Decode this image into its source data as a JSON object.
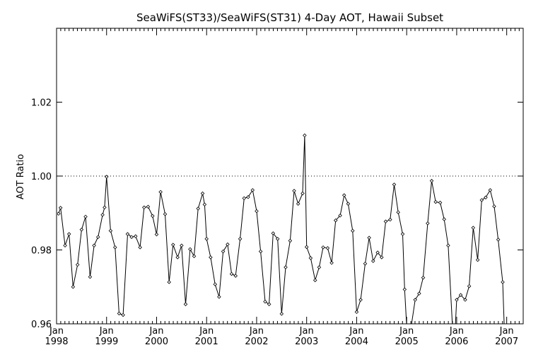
{
  "chart_data": {
    "type": "line",
    "title": "SeaWiFS(ST33)/SeaWiFS(ST31) 4-Day AOT, Hawaii Subset",
    "xlabel": "",
    "ylabel": "AOT Ratio",
    "xlim": [
      1998.0,
      2007.33
    ],
    "ylim": [
      0.96,
      1.04
    ],
    "yticks": [
      0.96,
      0.98,
      1.0,
      1.02
    ],
    "ytick_labels": [
      "0.96",
      "0.98",
      "1.00",
      "1.02"
    ],
    "xticks": [
      1998,
      1999,
      2000,
      2001,
      2002,
      2003,
      2004,
      2005,
      2006,
      2007
    ],
    "xtick_month_label": "Jan",
    "xtick_year_labels": [
      "1998",
      "1999",
      "2000",
      "2001",
      "2002",
      "2003",
      "2004",
      "2005",
      "2006",
      "2007"
    ],
    "reference_line": {
      "y": 1.0,
      "style": "dotted"
    },
    "grid": false,
    "legend": "none",
    "marker": "diamond",
    "line_color": "#000000",
    "series": [
      {
        "x": [
          1998.0,
          1998.04,
          1998.08,
          1998.17,
          1998.25,
          1998.33,
          1998.42,
          1998.5,
          1998.58,
          1998.67,
          1998.75,
          1998.83,
          1998.92,
          1998.96,
          1999.0,
          1999.08,
          1999.17,
          1999.25,
          1999.33,
          1999.42,
          1999.5,
          1999.58,
          1999.67,
          1999.75,
          1999.83,
          1999.92,
          2000.0,
          2000.08,
          2000.17,
          2000.25,
          2000.33,
          2000.42,
          2000.5,
          2000.58,
          2000.67,
          2000.75,
          2000.83,
          2000.92,
          2000.96,
          2001.0,
          2001.08,
          2001.17,
          2001.25,
          2001.33,
          2001.42,
          2001.5,
          2001.58,
          2001.67,
          2001.75,
          2001.83,
          2001.92,
          2002.0,
          2002.08,
          2002.17,
          2002.25,
          2002.33,
          2002.42,
          2002.5,
          2002.58,
          2002.67,
          2002.75,
          2002.83,
          2002.92,
          2002.96,
          2003.0,
          2003.08,
          2003.17,
          2003.25,
          2003.33,
          2003.42,
          2003.5,
          2003.58,
          2003.67,
          2003.75,
          2003.83,
          2003.92,
          2004.0,
          2004.08,
          2004.17,
          2004.25,
          2004.33,
          2004.42,
          2004.5,
          2004.58,
          2004.67,
          2004.75,
          2004.83,
          2004.92,
          2004.96,
          2005.0,
          2005.08,
          2005.17,
          2005.25,
          2005.33,
          2005.42,
          2005.5,
          2005.58,
          2005.67,
          2005.75,
          2005.83,
          2005.92,
          2005.96,
          2006.0,
          2006.08,
          2006.17,
          2006.25,
          2006.33,
          2006.42,
          2006.5,
          2006.58,
          2006.67,
          2006.75,
          2006.83,
          2006.92,
          2006.96,
          2007.0,
          2007.08,
          2007.17,
          2007.25,
          2007.3
        ],
        "y": [
          0.9898,
          0.9898,
          0.9914,
          0.9812,
          0.9843,
          0.97,
          0.976,
          0.9855,
          0.989,
          0.9727,
          0.9812,
          0.9835,
          0.9895,
          0.9915,
          0.9998,
          0.9852,
          0.9807,
          0.9628,
          0.9624,
          0.9843,
          0.9835,
          0.9837,
          0.9807,
          0.9915,
          0.9917,
          0.9892,
          0.9842,
          0.9957,
          0.9897,
          0.9713,
          0.9814,
          0.978,
          0.9812,
          0.9653,
          0.9802,
          0.9783,
          0.9912,
          0.9953,
          0.9923,
          0.983,
          0.978,
          0.9707,
          0.9673,
          0.9796,
          0.9815,
          0.9735,
          0.973,
          0.983,
          0.994,
          0.9943,
          0.9962,
          0.9905,
          0.9796,
          0.966,
          0.9653,
          0.9845,
          0.983,
          0.9627,
          0.9753,
          0.9825,
          0.996,
          0.9925,
          0.9953,
          1.011,
          0.9808,
          0.9778,
          0.9718,
          0.9753,
          0.9807,
          0.9805,
          0.9765,
          0.988,
          0.9893,
          0.9948,
          0.9925,
          0.9852,
          0.9632,
          0.9665,
          0.9763,
          0.9833,
          0.977,
          0.9793,
          0.978,
          0.9877,
          0.9882,
          0.9977,
          0.9902,
          0.9843,
          0.9693,
          0.9593,
          0.9583,
          0.9665,
          0.9682,
          0.9725,
          0.9872,
          0.9987,
          0.993,
          0.9928,
          0.9883,
          0.9812,
          0.958,
          0.956,
          0.9665,
          0.9678,
          0.9665,
          0.9702,
          0.986,
          0.9773,
          0.9935,
          0.9942,
          0.9962,
          0.9918,
          0.9828,
          0.9713,
          0.956,
          0.956,
          0.956,
          0.956,
          0.956,
          0.956
        ]
      }
    ]
  }
}
